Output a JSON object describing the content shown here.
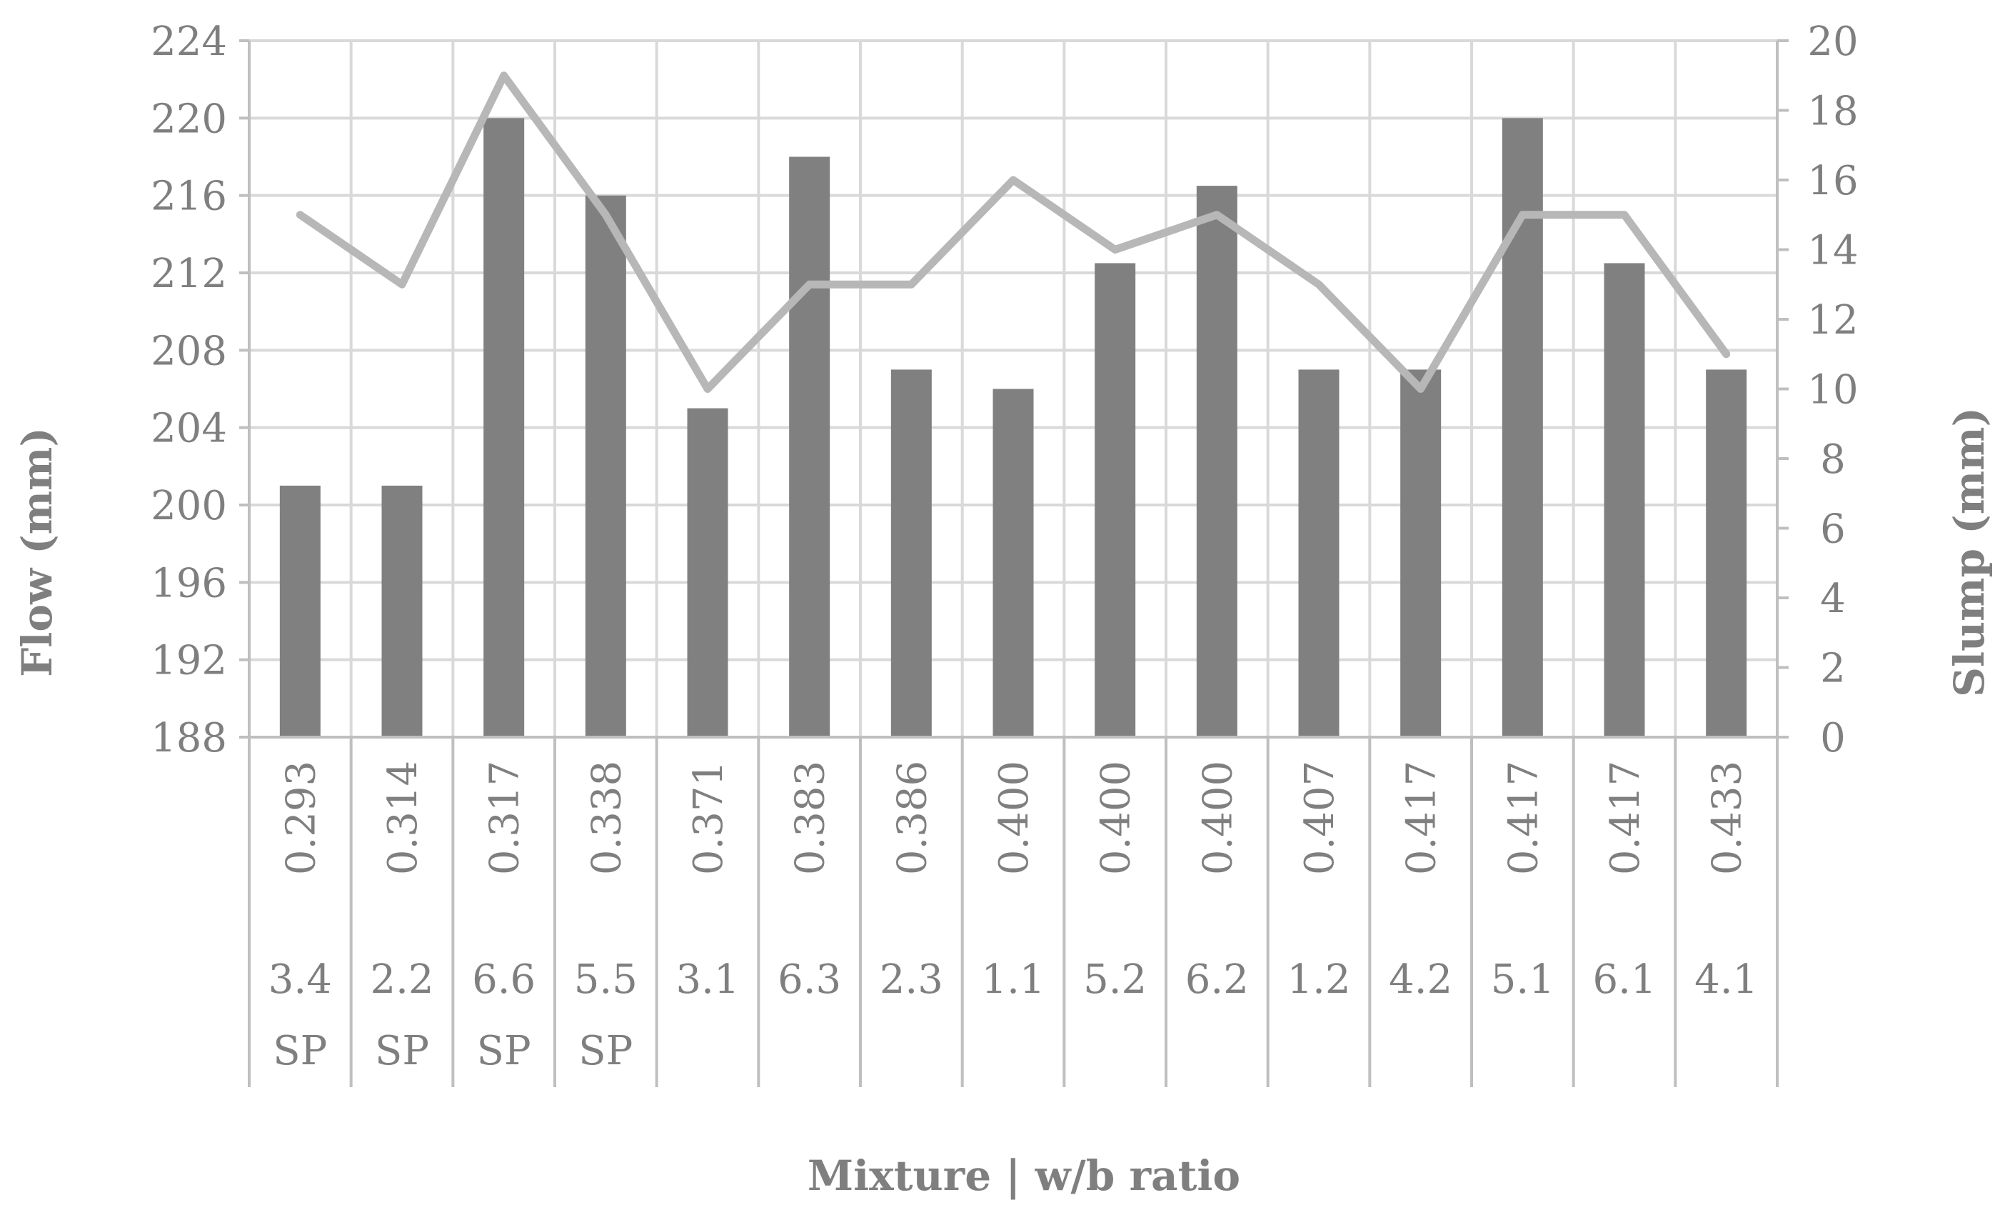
{
  "chart_data": {
    "type": "bar",
    "xlabel": "Mixture | w/b ratio",
    "ylabel": "Flow (mm)",
    "y2label": "Slump (mm)",
    "ylim": [
      188,
      224
    ],
    "y_ticks": [
      "188",
      "192",
      "196",
      "200",
      "204",
      "208",
      "212",
      "216",
      "220",
      "224"
    ],
    "y2lim": [
      0,
      20
    ],
    "y2_ticks": [
      "0",
      "2",
      "4",
      "6",
      "8",
      "10",
      "12",
      "14",
      "16",
      "18",
      "20"
    ],
    "grid": true,
    "legend": "none",
    "colors": {
      "bars": "#808080",
      "line": "#b7b7b7",
      "grid": "#d9d9d9",
      "axis": "#bfbfbf",
      "text": "#7f7f7f"
    },
    "categories": [
      {
        "ratio": "0.293",
        "mixture": "3.4",
        "suffix": "SP"
      },
      {
        "ratio": "0.314",
        "mixture": "2.2",
        "suffix": "SP"
      },
      {
        "ratio": "0.317",
        "mixture": "6.6",
        "suffix": "SP"
      },
      {
        "ratio": "0.338",
        "mixture": "5.5",
        "suffix": "SP"
      },
      {
        "ratio": "0.371",
        "mixture": "3.1",
        "suffix": ""
      },
      {
        "ratio": "0.383",
        "mixture": "6.3",
        "suffix": ""
      },
      {
        "ratio": "0.386",
        "mixture": "2.3",
        "suffix": ""
      },
      {
        "ratio": "0.400",
        "mixture": "1.1",
        "suffix": ""
      },
      {
        "ratio": "0.400",
        "mixture": "5.2",
        "suffix": ""
      },
      {
        "ratio": "0.400",
        "mixture": "6.2",
        "suffix": ""
      },
      {
        "ratio": "0.407",
        "mixture": "1.2",
        "suffix": ""
      },
      {
        "ratio": "0.417",
        "mixture": "4.2",
        "suffix": ""
      },
      {
        "ratio": "0.417",
        "mixture": "5.1",
        "suffix": ""
      },
      {
        "ratio": "0.417",
        "mixture": "6.1",
        "suffix": ""
      },
      {
        "ratio": "0.433",
        "mixture": "4.1",
        "suffix": ""
      }
    ],
    "series": [
      {
        "kind": "bar",
        "axis": "left",
        "values": [
          201,
          201,
          220,
          216,
          205,
          218,
          207,
          206,
          212.5,
          216.5,
          207,
          207,
          220,
          212.5,
          207
        ]
      },
      {
        "kind": "line",
        "axis": "right",
        "values": [
          15,
          13,
          19,
          15,
          10,
          13,
          13,
          16,
          14,
          15,
          13,
          10,
          15,
          15,
          11
        ]
      }
    ]
  }
}
